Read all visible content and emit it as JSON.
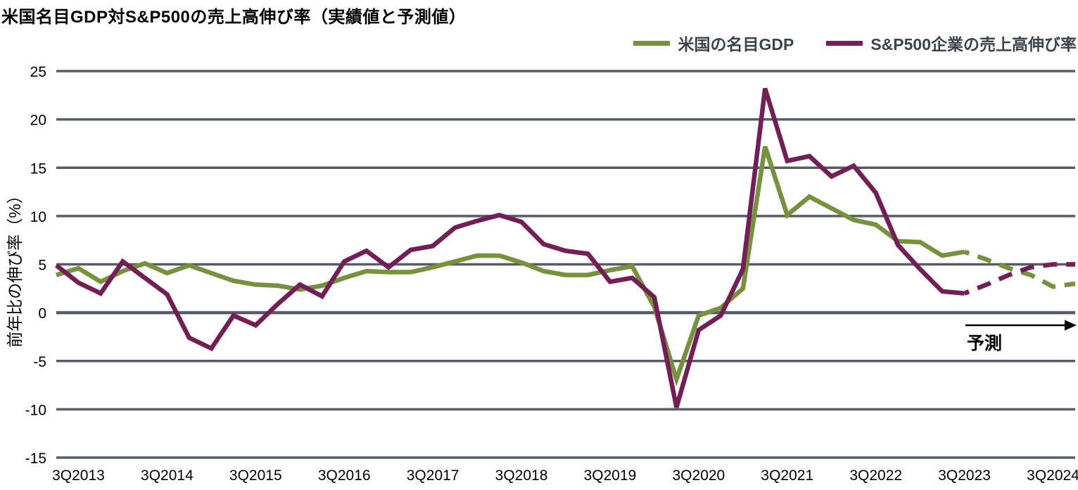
{
  "header": {
    "title": "米国名目GDP対S&P500の売上高伸び率（実績値と予測値）"
  },
  "legend": {
    "series": [
      {
        "label": "米国の名目GDP",
        "color": "#76923C"
      },
      {
        "label": "S&P500企業の売上高伸び率",
        "color": "#731E55"
      }
    ]
  },
  "y_axis": {
    "title": "前年比の伸び率（%）"
  },
  "forecast": {
    "label": "予測"
  },
  "colors": {
    "gridline": "#575C66",
    "background": "#ffffff",
    "gdp_line": "#76923C",
    "sp500_line": "#731E55",
    "arrow": "#000000"
  },
  "chart_data": {
    "type": "line",
    "title": "米国名目GDP対S&P500の売上高伸び率（実績値と予測値）",
    "ylabel": "前年比の伸び率（%）",
    "x_unit": "quarter",
    "x_start": "2Q2013",
    "x_end": "4Q2024",
    "ylim": [
      -15,
      25
    ],
    "ytick_step": 5,
    "y_tick_labels": [
      "25",
      "20",
      "15",
      "10",
      "5",
      "0",
      "-5",
      "-10",
      "-15"
    ],
    "x_tick_labels": [
      "3Q2013",
      "3Q2014",
      "3Q2015",
      "3Q2016",
      "3Q2017",
      "3Q2018",
      "3Q2019",
      "3Q2020",
      "3Q2021",
      "3Q2022",
      "3Q2023",
      "3Q2024"
    ],
    "x_tick_indices": [
      1,
      5,
      9,
      13,
      17,
      21,
      25,
      29,
      33,
      37,
      41,
      45
    ],
    "grid": "horizontal",
    "legend_position": "top-right",
    "forecast_start_index": 41,
    "forecast_annotation": "予測",
    "series": [
      {
        "name": "米国の名目GDP",
        "color": "#76923C",
        "values": [
          3.9,
          4.6,
          3.2,
          4.3,
          5.1,
          4.1,
          4.9,
          4.1,
          3.3,
          2.9,
          2.8,
          2.4,
          2.8,
          3.6,
          4.3,
          4.2,
          4.2,
          4.7,
          5.3,
          5.9,
          5.9,
          5.2,
          4.3,
          3.9,
          3.9,
          4.4,
          4.8,
          0.6,
          -6.9,
          -0.3,
          0.5,
          2.5,
          17.2,
          10.1,
          12.0,
          10.8,
          9.6,
          9.1,
          7.4,
          7.3,
          5.9,
          6.3,
          5.5,
          4.6,
          3.9,
          2.7,
          3.0
        ]
      },
      {
        "name": "S&P500企業の売上高伸び率",
        "color": "#731E55",
        "values": [
          4.9,
          3.1,
          2.0,
          5.3,
          3.6,
          1.9,
          -2.6,
          -3.7,
          -0.3,
          -1.3,
          0.9,
          2.9,
          1.7,
          5.3,
          6.4,
          4.7,
          6.5,
          6.9,
          8.8,
          9.5,
          10.1,
          9.4,
          7.1,
          6.4,
          6.1,
          3.2,
          3.6,
          1.6,
          -9.8,
          -1.8,
          -0.3,
          4.5,
          23.2,
          15.7,
          16.2,
          14.1,
          15.2,
          12.4,
          7.0,
          4.5,
          2.2,
          2.0,
          2.9,
          3.9,
          4.7,
          5.0,
          5.0
        ]
      }
    ]
  }
}
